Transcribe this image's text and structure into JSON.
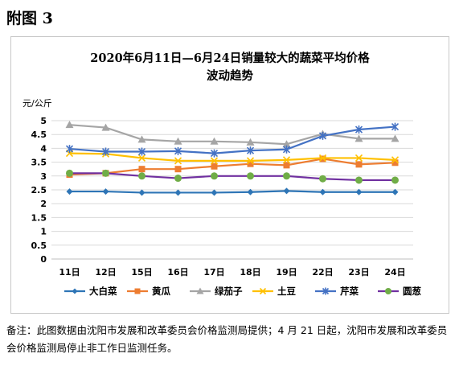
{
  "heading": "附图 3",
  "footnote": "备注：此图数据由沈阳市发展和改革委员会价格监测局提供；4 月 21 日起，沈阳市发展和改革委员会价格监测局停止非工作日监测任务。",
  "chart_data": {
    "type": "line",
    "title_lines": [
      "2020年6月11日—6月24日销量较大的蔬菜平均价格",
      "波动趋势"
    ],
    "ylabel": "元/公斤",
    "xlabel": "",
    "categories": [
      "11日",
      "12日",
      "15日",
      "16日",
      "17日",
      "18日",
      "19日",
      "22日",
      "23日",
      "24日"
    ],
    "ylim": [
      0,
      5
    ],
    "yticks": [
      "0",
      "0.5",
      "1",
      "1.5",
      "2",
      "2.5",
      "3",
      "3.5",
      "4",
      "4.5",
      "5"
    ],
    "grid": true,
    "legend_position": "bottom",
    "series": [
      {
        "name": "大白菜",
        "color": "#2e75b6",
        "marker": "diamond",
        "values": [
          2.44,
          2.44,
          2.4,
          2.4,
          2.4,
          2.42,
          2.46,
          2.42,
          2.42,
          2.42
        ]
      },
      {
        "name": "黄瓜",
        "color": "#ed7d31",
        "marker": "square",
        "values": [
          3.05,
          3.1,
          3.25,
          3.25,
          3.35,
          3.44,
          3.39,
          3.62,
          3.42,
          3.48
        ]
      },
      {
        "name": "绿茄子",
        "color": "#a5a5a5",
        "marker": "triangle",
        "values": [
          4.85,
          4.75,
          4.32,
          4.25,
          4.25,
          4.22,
          4.15,
          4.52,
          4.35,
          4.35
        ]
      },
      {
        "name": "土豆",
        "color": "#ffc000",
        "marker": "x",
        "values": [
          3.82,
          3.8,
          3.65,
          3.55,
          3.55,
          3.55,
          3.58,
          3.65,
          3.65,
          3.58
        ]
      },
      {
        "name": "芹菜",
        "color": "#4472c4",
        "marker": "star",
        "values": [
          3.98,
          3.88,
          3.88,
          3.9,
          3.82,
          3.92,
          3.96,
          4.45,
          4.68,
          4.78
        ]
      },
      {
        "name": "圆葱",
        "color": "#7030a0",
        "marker": "circle",
        "values": [
          3.1,
          3.1,
          3.0,
          2.92,
          3.0,
          3.0,
          3.0,
          2.9,
          2.85,
          2.85
        ]
      }
    ]
  }
}
